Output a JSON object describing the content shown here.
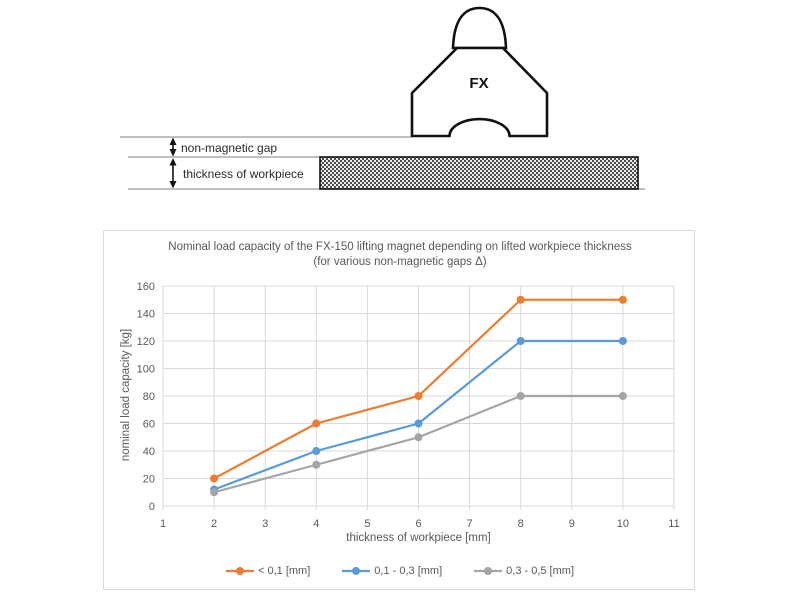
{
  "diagram": {
    "magnet_label": "FX",
    "gap_label": "non-magnetic gap",
    "thickness_label": "thickness of workpiece"
  },
  "chart_data": {
    "type": "line",
    "title": "Nominal load capacity of the FX-150 lifting magnet depending on lifted workpiece thickness",
    "subtitle": "(for various non-magnetic gaps Δ)",
    "xlabel": "thickness of workpiece [mm]",
    "ylabel": "nominal load capacity [kg]",
    "x": [
      2,
      4,
      6,
      8,
      10
    ],
    "series": [
      {
        "name": "< 0,1 [mm]",
        "color": "#ED7D31",
        "values": [
          20,
          60,
          80,
          150,
          150
        ]
      },
      {
        "name": "0,1 - 0,3 [mm]",
        "color": "#5B9BD5",
        "values": [
          12,
          40,
          60,
          120,
          120
        ]
      },
      {
        "name": "0,3 - 0,5 [mm]",
        "color": "#A5A5A5",
        "values": [
          10,
          30,
          50,
          80,
          80
        ]
      }
    ],
    "xlim": [
      1,
      11
    ],
    "ylim": [
      0,
      160
    ],
    "x_ticks": [
      1,
      2,
      3,
      4,
      5,
      6,
      7,
      8,
      9,
      10,
      11
    ],
    "y_ticks": [
      0,
      20,
      40,
      60,
      80,
      100,
      120,
      140,
      160
    ],
    "grid": true,
    "legend_position": "bottom",
    "colors": {
      "grid": "#d9d9d9",
      "plot_border": "#d9d9d9",
      "text": "#595959"
    }
  }
}
